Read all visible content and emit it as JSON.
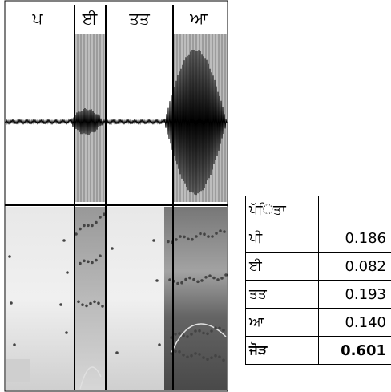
{
  "figure": {
    "segments": [
      {
        "label": "ਪ",
        "highlighted": false
      },
      {
        "label": "ਈ",
        "highlighted": true
      },
      {
        "label": "ਤਤ",
        "highlighted": false
      },
      {
        "label": "ਆ",
        "highlighted": true
      }
    ]
  },
  "table": {
    "header": "ਪੱਿਤਾ",
    "rows": [
      {
        "label": "ਪੀ",
        "value": "0.186"
      },
      {
        "label": "ਈ",
        "value": "0.082"
      },
      {
        "label": "ਤਤ",
        "value": "0.193"
      },
      {
        "label": "ਆ",
        "value": "0.140"
      }
    ],
    "total": {
      "label": "ਜੋੜ",
      "value": "0.601"
    }
  },
  "colors": {
    "highlight": "#b4b4b4",
    "waveform": "#000000",
    "formant": "#444444"
  }
}
